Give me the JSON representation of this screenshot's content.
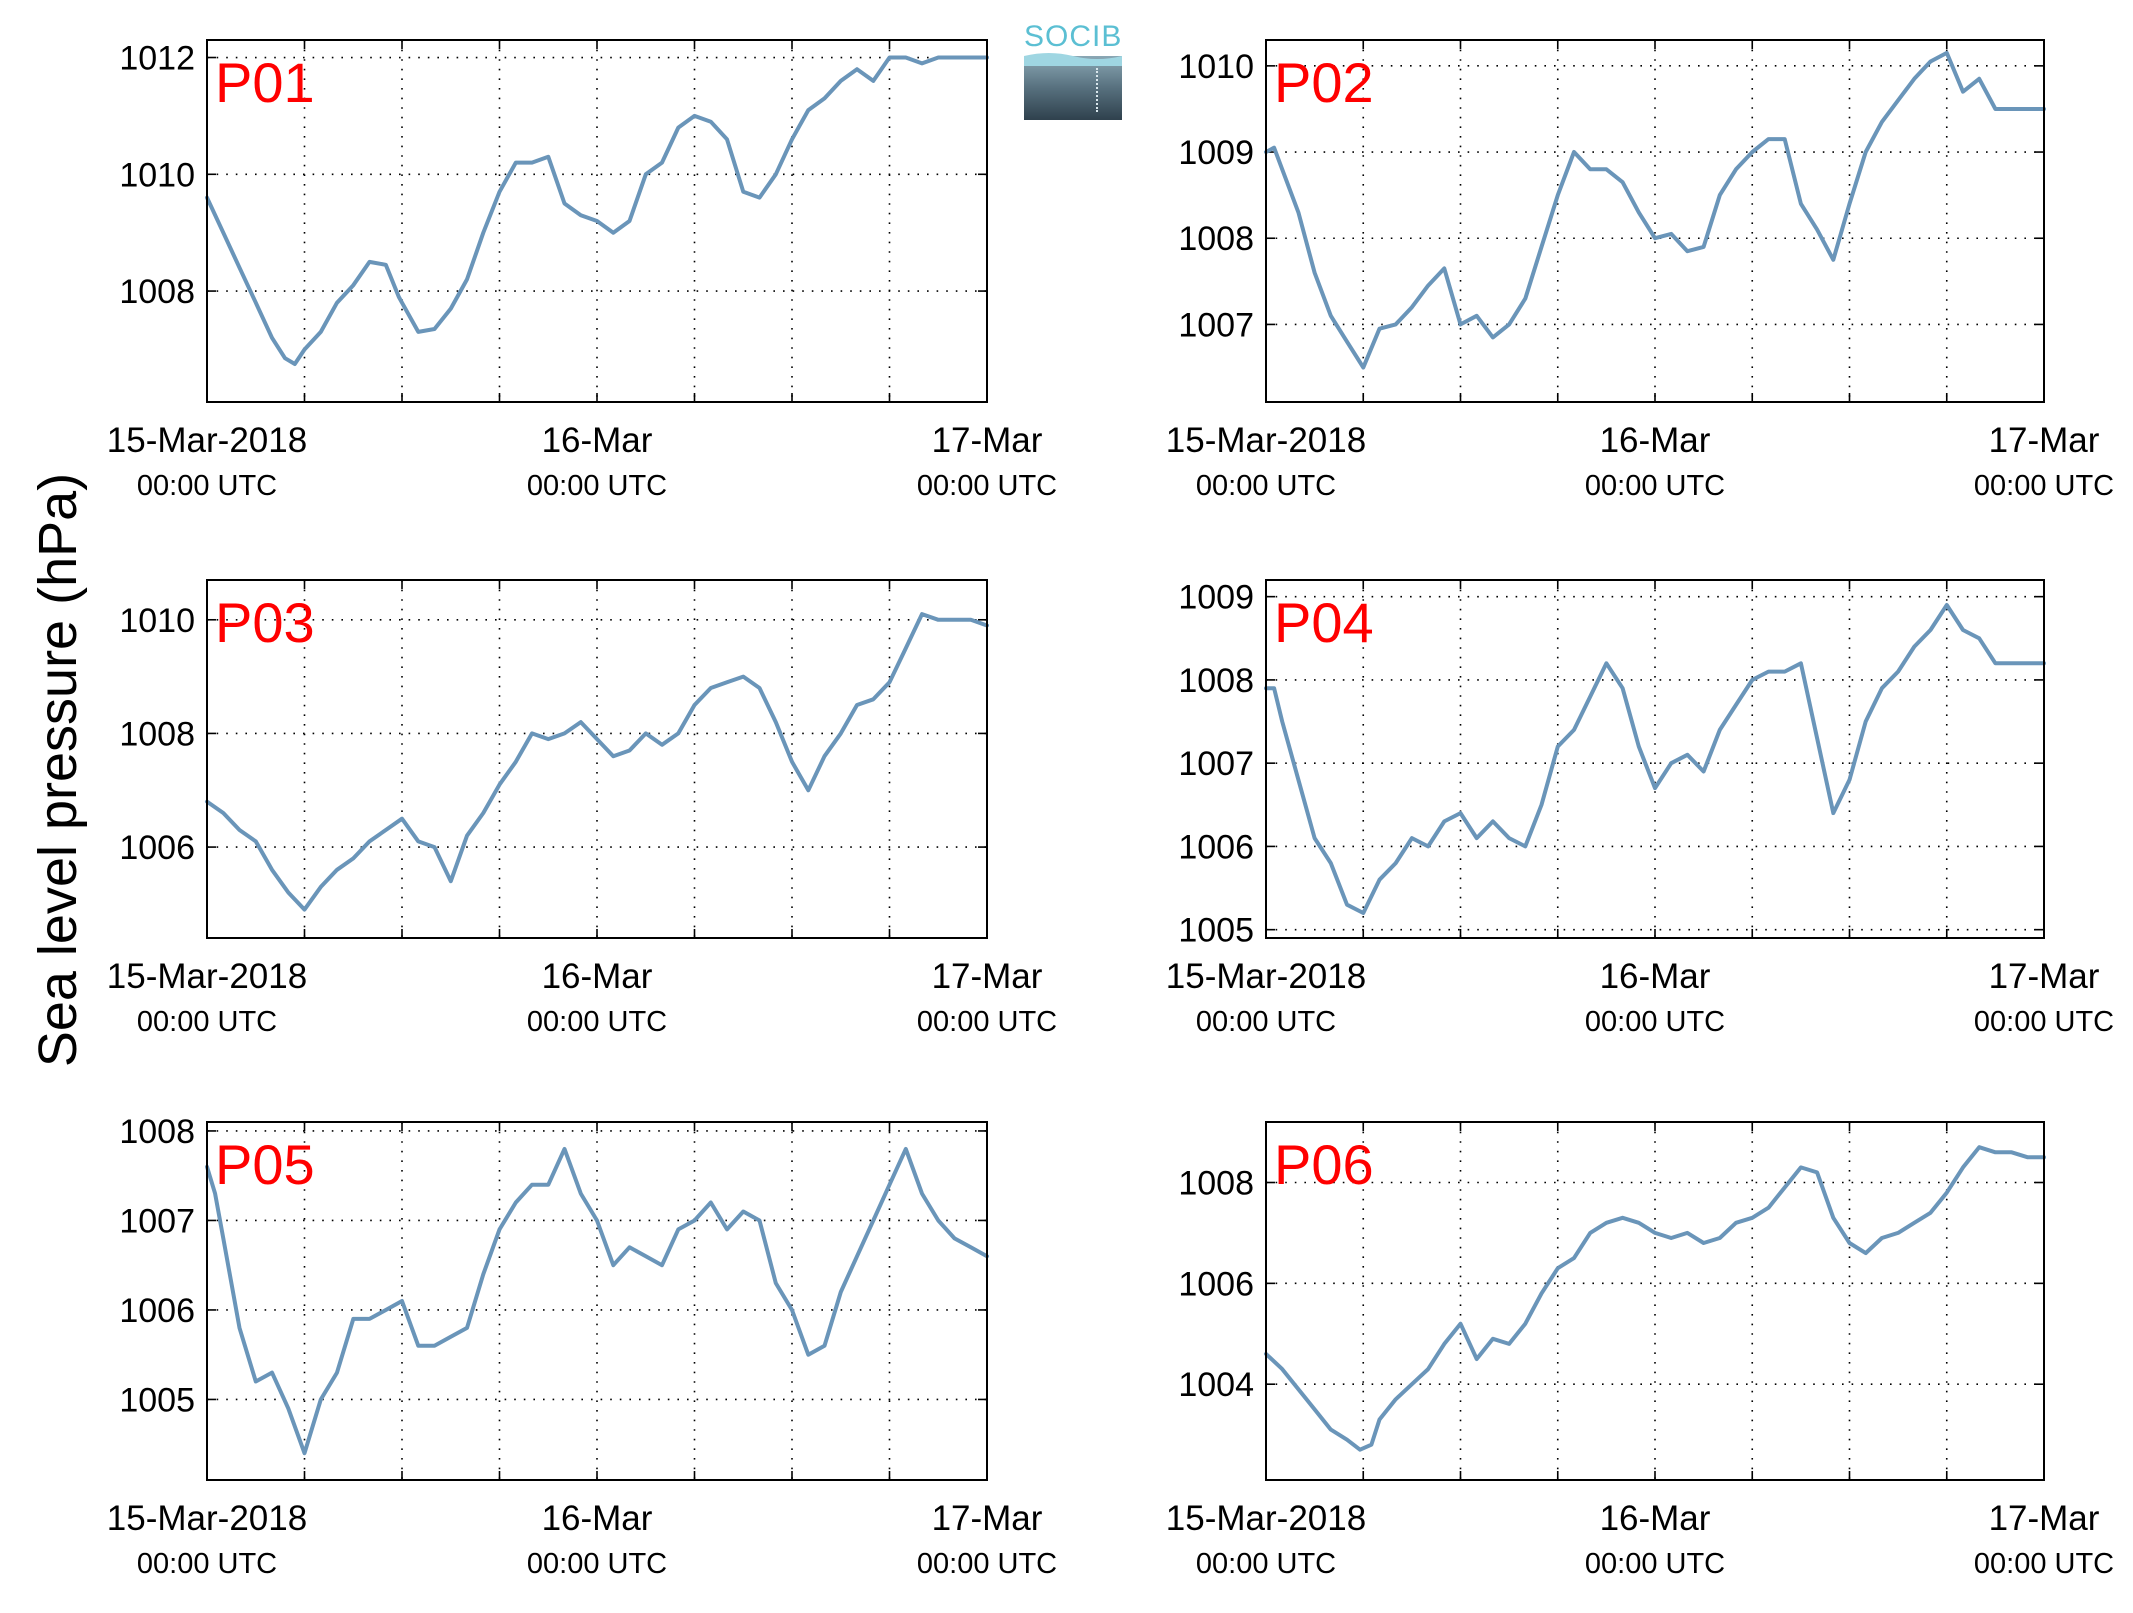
{
  "figure": {
    "ylabel": "Sea level pressure (hPa)",
    "logo": "SOCIB",
    "line_color": "#6a95b9",
    "panel_label_color": "#ff0000"
  },
  "chart_data": [
    {
      "type": "line",
      "title": "P01",
      "xlabel": "",
      "ylabel": "Sea level pressure (hPa)",
      "x_tick_labels": [
        [
          "15-Mar-2018",
          "00:00 UTC"
        ],
        [
          "16-Mar",
          "00:00 UTC"
        ],
        [
          "17-Mar",
          "00:00 UTC"
        ]
      ],
      "xlim_hours": [
        0,
        48
      ],
      "ylim": [
        1006.1,
        1012.3
      ],
      "yticks": [
        1008,
        1010,
        1012
      ],
      "grid": true,
      "series": [
        {
          "x_hours": [
            0,
            1,
            2,
            3,
            4,
            4.8,
            5.4,
            6,
            7,
            8,
            9,
            10,
            11,
            11.8,
            12,
            13,
            14,
            15,
            16,
            17,
            18,
            19,
            20,
            21,
            22,
            23,
            24,
            25,
            26,
            27,
            28,
            29,
            30,
            31,
            32,
            33,
            34,
            35,
            36,
            37,
            38,
            39,
            40,
            41,
            42,
            43,
            44,
            45,
            46,
            47,
            48
          ],
          "values": [
            1009.6,
            1009.0,
            1008.4,
            1007.8,
            1007.2,
            1006.85,
            1006.75,
            1007.0,
            1007.3,
            1007.8,
            1008.1,
            1008.5,
            1008.45,
            1007.9,
            1007.8,
            1007.3,
            1007.35,
            1007.7,
            1008.2,
            1009.0,
            1009.7,
            1010.2,
            1010.2,
            1010.3,
            1009.5,
            1009.3,
            1009.2,
            1009.0,
            1009.2,
            1010.0,
            1010.2,
            1010.8,
            1011.0,
            1010.9,
            1010.6,
            1009.7,
            1009.6,
            1010.0,
            1010.6,
            1011.1,
            1011.3,
            1011.6,
            1011.8,
            1011.6,
            1012.0,
            1012.0,
            1011.9,
            1012.0,
            1012.0,
            1012.0,
            1012.0
          ]
        }
      ]
    },
    {
      "type": "line",
      "title": "P02",
      "xlabel": "",
      "ylabel": "Sea level pressure (hPa)",
      "x_tick_labels": [
        [
          "15-Mar-2018",
          "00:00 UTC"
        ],
        [
          "16-Mar",
          "00:00 UTC"
        ],
        [
          "17-Mar",
          "00:00 UTC"
        ]
      ],
      "xlim_hours": [
        0,
        48
      ],
      "ylim": [
        1006.1,
        1010.3
      ],
      "yticks": [
        1007,
        1008,
        1009,
        1010
      ],
      "grid": true,
      "series": [
        {
          "x_hours": [
            0,
            0.5,
            1,
            2,
            3,
            4,
            5,
            6,
            7,
            8,
            9,
            10,
            11,
            12,
            13,
            14,
            15,
            16,
            17,
            18,
            19,
            20,
            21,
            22,
            23,
            24,
            25,
            26,
            27,
            28,
            29,
            30,
            31,
            32,
            33,
            34,
            35,
            36,
            37,
            38,
            39,
            40,
            41,
            42,
            43,
            44,
            45,
            46,
            47,
            48
          ],
          "values": [
            1009.0,
            1009.05,
            1008.8,
            1008.3,
            1007.6,
            1007.1,
            1006.8,
            1006.5,
            1006.95,
            1007.0,
            1007.2,
            1007.45,
            1007.65,
            1007.0,
            1007.1,
            1006.85,
            1007.0,
            1007.3,
            1007.9,
            1008.5,
            1009.0,
            1008.8,
            1008.8,
            1008.65,
            1008.3,
            1008.0,
            1008.05,
            1007.85,
            1007.9,
            1008.5,
            1008.8,
            1009.0,
            1009.15,
            1009.15,
            1008.4,
            1008.1,
            1007.75,
            1008.4,
            1009.0,
            1009.35,
            1009.6,
            1009.85,
            1010.05,
            1010.15,
            1009.7,
            1009.85,
            1009.5,
            1009.5,
            1009.5,
            1009.5
          ]
        }
      ]
    },
    {
      "type": "line",
      "title": "P03",
      "xlabel": "",
      "ylabel": "Sea level pressure (hPa)",
      "x_tick_labels": [
        [
          "15-Mar-2018",
          "00:00 UTC"
        ],
        [
          "16-Mar",
          "00:00 UTC"
        ],
        [
          "17-Mar",
          "00:00 UTC"
        ]
      ],
      "xlim_hours": [
        0,
        48
      ],
      "ylim": [
        1004.4,
        1010.7
      ],
      "yticks": [
        1006,
        1008,
        1010
      ],
      "grid": true,
      "series": [
        {
          "x_hours": [
            0,
            1,
            2,
            3,
            4,
            5,
            6,
            7,
            8,
            9,
            10,
            11,
            12,
            13,
            14,
            15,
            16,
            17,
            18,
            19,
            20,
            21,
            22,
            23,
            24,
            25,
            26,
            27,
            28,
            29,
            30,
            31,
            32,
            33,
            34,
            35,
            36,
            37,
            38,
            39,
            40,
            41,
            42,
            43,
            44,
            45,
            46,
            47,
            48
          ],
          "values": [
            1006.8,
            1006.6,
            1006.3,
            1006.1,
            1005.6,
            1005.2,
            1004.9,
            1005.3,
            1005.6,
            1005.8,
            1006.1,
            1006.3,
            1006.5,
            1006.1,
            1006.0,
            1005.4,
            1006.2,
            1006.6,
            1007.1,
            1007.5,
            1008.0,
            1007.9,
            1008.0,
            1008.2,
            1007.9,
            1007.6,
            1007.7,
            1008.0,
            1007.8,
            1008.0,
            1008.5,
            1008.8,
            1008.9,
            1009.0,
            1008.8,
            1008.2,
            1007.5,
            1007.0,
            1007.6,
            1008.0,
            1008.5,
            1008.6,
            1008.9,
            1009.5,
            1010.1,
            1010.0,
            1010.0,
            1010.0,
            1009.9
          ]
        }
      ]
    },
    {
      "type": "line",
      "title": "P04",
      "xlabel": "",
      "ylabel": "Sea level pressure (hPa)",
      "x_tick_labels": [
        [
          "15-Mar-2018",
          "00:00 UTC"
        ],
        [
          "16-Mar",
          "00:00 UTC"
        ],
        [
          "17-Mar",
          "00:00 UTC"
        ]
      ],
      "xlim_hours": [
        0,
        48
      ],
      "ylim": [
        1004.9,
        1009.2
      ],
      "yticks": [
        1005,
        1006,
        1007,
        1008,
        1009
      ],
      "grid": true,
      "series": [
        {
          "x_hours": [
            0,
            0.5,
            1,
            2,
            3,
            4,
            5,
            6,
            7,
            8,
            9,
            10,
            11,
            12,
            13,
            14,
            15,
            16,
            17,
            18,
            19,
            20,
            21,
            22,
            23,
            24,
            25,
            26,
            27,
            28,
            29,
            30,
            31,
            32,
            33,
            34,
            35,
            36,
            37,
            38,
            39,
            40,
            41,
            42,
            43,
            44,
            45,
            46,
            47,
            48
          ],
          "values": [
            1007.9,
            1007.9,
            1007.5,
            1006.8,
            1006.1,
            1005.8,
            1005.3,
            1005.2,
            1005.6,
            1005.8,
            1006.1,
            1006.0,
            1006.3,
            1006.4,
            1006.1,
            1006.3,
            1006.1,
            1006.0,
            1006.5,
            1007.2,
            1007.4,
            1007.8,
            1008.2,
            1007.9,
            1007.2,
            1006.7,
            1007.0,
            1007.1,
            1006.9,
            1007.4,
            1007.7,
            1008.0,
            1008.1,
            1008.1,
            1008.2,
            1007.3,
            1006.4,
            1006.8,
            1007.5,
            1007.9,
            1008.1,
            1008.4,
            1008.6,
            1008.9,
            1008.6,
            1008.5,
            1008.2,
            1008.2,
            1008.2,
            1008.2
          ]
        }
      ]
    },
    {
      "type": "line",
      "title": "P05",
      "xlabel": "",
      "ylabel": "Sea level pressure (hPa)",
      "x_tick_labels": [
        [
          "15-Mar-2018",
          "00:00 UTC"
        ],
        [
          "16-Mar",
          "00:00 UTC"
        ],
        [
          "17-Mar",
          "00:00 UTC"
        ]
      ],
      "xlim_hours": [
        0,
        48
      ],
      "ylim": [
        1004.1,
        1008.1
      ],
      "yticks": [
        1005,
        1006,
        1007,
        1008
      ],
      "grid": true,
      "series": [
        {
          "x_hours": [
            0,
            0.5,
            1,
            2,
            3,
            4,
            5,
            6,
            7,
            8,
            9,
            10,
            11,
            12,
            13,
            14,
            15,
            16,
            17,
            18,
            19,
            20,
            21,
            22,
            23,
            24,
            25,
            26,
            27,
            28,
            29,
            30,
            31,
            32,
            33,
            34,
            35,
            36,
            37,
            38,
            39,
            40,
            41,
            42,
            43,
            44,
            45,
            46,
            47,
            48
          ],
          "values": [
            1007.6,
            1007.3,
            1006.8,
            1005.8,
            1005.2,
            1005.3,
            1004.9,
            1004.4,
            1005.0,
            1005.3,
            1005.9,
            1005.9,
            1006.0,
            1006.1,
            1005.6,
            1005.6,
            1005.7,
            1005.8,
            1006.4,
            1006.9,
            1007.2,
            1007.4,
            1007.4,
            1007.8,
            1007.3,
            1007.0,
            1006.5,
            1006.7,
            1006.6,
            1006.5,
            1006.9,
            1007.0,
            1007.2,
            1006.9,
            1007.1,
            1007.0,
            1006.3,
            1006.0,
            1005.5,
            1005.6,
            1006.2,
            1006.6,
            1007.0,
            1007.4,
            1007.8,
            1007.3,
            1007.0,
            1006.8,
            1006.7,
            1006.6
          ]
        }
      ]
    },
    {
      "type": "line",
      "title": "P06",
      "xlabel": "",
      "ylabel": "Sea level pressure (hPa)",
      "x_tick_labels": [
        [
          "15-Mar-2018",
          "00:00 UTC"
        ],
        [
          "16-Mar",
          "00:00 UTC"
        ],
        [
          "17-Mar",
          "00:00 UTC"
        ]
      ],
      "xlim_hours": [
        0,
        48
      ],
      "ylim": [
        1002.1,
        1009.2
      ],
      "yticks": [
        1004,
        1006,
        1008
      ],
      "grid": true,
      "series": [
        {
          "x_hours": [
            0,
            1,
            2,
            3,
            4,
            5,
            5.8,
            6.5,
            7,
            8,
            9,
            10,
            11,
            12,
            13,
            14,
            15,
            16,
            17,
            18,
            19,
            20,
            21,
            22,
            23,
            24,
            25,
            26,
            27,
            28,
            29,
            30,
            31,
            32,
            33,
            34,
            35,
            36,
            37,
            38,
            39,
            40,
            41,
            42,
            43,
            44,
            45,
            46,
            47,
            48
          ],
          "values": [
            1004.6,
            1004.3,
            1003.9,
            1003.5,
            1003.1,
            1002.9,
            1002.7,
            1002.8,
            1003.3,
            1003.7,
            1004.0,
            1004.3,
            1004.8,
            1005.2,
            1004.5,
            1004.9,
            1004.8,
            1005.2,
            1005.8,
            1006.3,
            1006.5,
            1007.0,
            1007.2,
            1007.3,
            1007.2,
            1007.0,
            1006.9,
            1007.0,
            1006.8,
            1006.9,
            1007.2,
            1007.3,
            1007.5,
            1007.9,
            1008.3,
            1008.2,
            1007.3,
            1006.8,
            1006.6,
            1006.9,
            1007.0,
            1007.2,
            1007.4,
            1007.8,
            1008.3,
            1008.7,
            1008.6,
            1008.6,
            1008.5,
            1008.5
          ]
        }
      ]
    }
  ]
}
